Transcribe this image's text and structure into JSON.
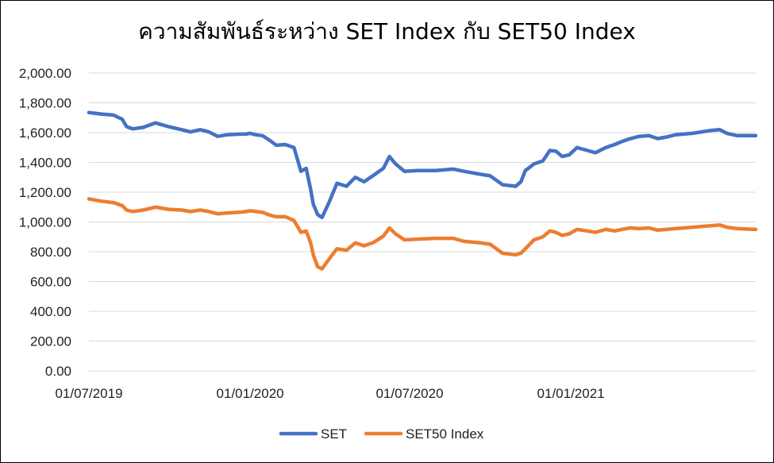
{
  "chart_data": {
    "type": "line",
    "title": "ความสัมพันธ์ระหว่าง SET Index กับ SET50 Index",
    "xlabel": "",
    "ylabel": "",
    "ylim": [
      0,
      2000
    ],
    "y_ticks": [
      "0.00",
      "200.00",
      "400.00",
      "600.00",
      "800.00",
      "1,000.00",
      "1,200.00",
      "1,400.00",
      "1,600.00",
      "1,800.00",
      "2,000.00"
    ],
    "x_ticks": [
      "01/07/2019",
      "01/01/2020",
      "01/07/2020",
      "01/01/2021"
    ],
    "x_tick_dates": [
      "2019-07-01",
      "2020-01-01",
      "2020-07-01",
      "2021-01-01"
    ],
    "xlim": [
      "2019-07-01",
      "2021-07-31"
    ],
    "grid": "horizontal",
    "legend": "bottom",
    "series": [
      {
        "name": "SET",
        "color": "#4472C4",
        "points": [
          [
            "2019-07-01",
            1735
          ],
          [
            "2019-07-15",
            1725
          ],
          [
            "2019-07-29",
            1718
          ],
          [
            "2019-08-08",
            1690
          ],
          [
            "2019-08-13",
            1640
          ],
          [
            "2019-08-20",
            1625
          ],
          [
            "2019-09-01",
            1635
          ],
          [
            "2019-09-15",
            1665
          ],
          [
            "2019-09-30",
            1640
          ],
          [
            "2019-10-15",
            1620
          ],
          [
            "2019-10-25",
            1605
          ],
          [
            "2019-11-05",
            1620
          ],
          [
            "2019-11-15",
            1605
          ],
          [
            "2019-11-25",
            1575
          ],
          [
            "2019-12-05",
            1585
          ],
          [
            "2019-12-20",
            1590
          ],
          [
            "2019-12-27",
            1590
          ],
          [
            "2020-01-01",
            1595
          ],
          [
            "2020-01-08",
            1585
          ],
          [
            "2020-01-15",
            1580
          ],
          [
            "2020-01-24",
            1545
          ],
          [
            "2020-01-31",
            1515
          ],
          [
            "2020-02-10",
            1520
          ],
          [
            "2020-02-20",
            1500
          ],
          [
            "2020-02-28",
            1340
          ],
          [
            "2020-03-05",
            1360
          ],
          [
            "2020-03-10",
            1220
          ],
          [
            "2020-03-13",
            1120
          ],
          [
            "2020-03-18",
            1050
          ],
          [
            "2020-03-23",
            1030
          ],
          [
            "2020-03-31",
            1130
          ],
          [
            "2020-04-09",
            1260
          ],
          [
            "2020-04-20",
            1240
          ],
          [
            "2020-04-30",
            1300
          ],
          [
            "2020-05-10",
            1270
          ],
          [
            "2020-05-20",
            1310
          ],
          [
            "2020-06-01",
            1360
          ],
          [
            "2020-06-08",
            1440
          ],
          [
            "2020-06-15",
            1390
          ],
          [
            "2020-06-25",
            1340
          ],
          [
            "2020-07-10",
            1345
          ],
          [
            "2020-07-31",
            1345
          ],
          [
            "2020-08-20",
            1355
          ],
          [
            "2020-09-01",
            1340
          ],
          [
            "2020-09-20",
            1320
          ],
          [
            "2020-10-01",
            1310
          ],
          [
            "2020-10-15",
            1250
          ],
          [
            "2020-10-30",
            1240
          ],
          [
            "2020-11-05",
            1270
          ],
          [
            "2020-11-10",
            1345
          ],
          [
            "2020-11-20",
            1390
          ],
          [
            "2020-11-30",
            1410
          ],
          [
            "2020-12-08",
            1480
          ],
          [
            "2020-12-15",
            1475
          ],
          [
            "2020-12-22",
            1440
          ],
          [
            "2020-12-30",
            1450
          ],
          [
            "2021-01-08",
            1500
          ],
          [
            "2021-01-20",
            1480
          ],
          [
            "2021-01-29",
            1465
          ],
          [
            "2021-02-10",
            1500
          ],
          [
            "2021-02-20",
            1520
          ],
          [
            "2021-02-28",
            1540
          ],
          [
            "2021-03-10",
            1560
          ],
          [
            "2021-03-20",
            1575
          ],
          [
            "2021-03-31",
            1580
          ],
          [
            "2021-04-10",
            1560
          ],
          [
            "2021-04-20",
            1570
          ],
          [
            "2021-04-30",
            1585
          ],
          [
            "2021-05-20",
            1595
          ],
          [
            "2021-06-10",
            1615
          ],
          [
            "2021-06-20",
            1620
          ],
          [
            "2021-06-28",
            1595
          ],
          [
            "2021-07-10",
            1580
          ],
          [
            "2021-07-31",
            1580
          ]
        ]
      },
      {
        "name": "SET50 Index",
        "color": "#ED7D31",
        "points": [
          [
            "2019-07-01",
            1155
          ],
          [
            "2019-07-15",
            1140
          ],
          [
            "2019-07-29",
            1130
          ],
          [
            "2019-08-08",
            1110
          ],
          [
            "2019-08-13",
            1080
          ],
          [
            "2019-08-20",
            1070
          ],
          [
            "2019-09-01",
            1080
          ],
          [
            "2019-09-15",
            1100
          ],
          [
            "2019-09-30",
            1085
          ],
          [
            "2019-10-15",
            1080
          ],
          [
            "2019-10-25",
            1070
          ],
          [
            "2019-11-05",
            1080
          ],
          [
            "2019-11-15",
            1070
          ],
          [
            "2019-11-25",
            1055
          ],
          [
            "2019-12-05",
            1060
          ],
          [
            "2019-12-20",
            1065
          ],
          [
            "2019-12-27",
            1070
          ],
          [
            "2020-01-01",
            1075
          ],
          [
            "2020-01-08",
            1070
          ],
          [
            "2020-01-15",
            1065
          ],
          [
            "2020-01-24",
            1045
          ],
          [
            "2020-01-31",
            1035
          ],
          [
            "2020-02-10",
            1035
          ],
          [
            "2020-02-20",
            1010
          ],
          [
            "2020-02-28",
            930
          ],
          [
            "2020-03-05",
            940
          ],
          [
            "2020-03-10",
            860
          ],
          [
            "2020-03-13",
            780
          ],
          [
            "2020-03-18",
            700
          ],
          [
            "2020-03-23",
            685
          ],
          [
            "2020-03-31",
            750
          ],
          [
            "2020-04-09",
            820
          ],
          [
            "2020-04-20",
            810
          ],
          [
            "2020-04-30",
            860
          ],
          [
            "2020-05-10",
            840
          ],
          [
            "2020-05-20",
            860
          ],
          [
            "2020-06-01",
            905
          ],
          [
            "2020-06-08",
            960
          ],
          [
            "2020-06-15",
            920
          ],
          [
            "2020-06-25",
            880
          ],
          [
            "2020-07-10",
            885
          ],
          [
            "2020-07-31",
            890
          ],
          [
            "2020-08-20",
            890
          ],
          [
            "2020-09-01",
            870
          ],
          [
            "2020-09-20",
            860
          ],
          [
            "2020-10-01",
            850
          ],
          [
            "2020-10-15",
            790
          ],
          [
            "2020-10-30",
            780
          ],
          [
            "2020-11-05",
            790
          ],
          [
            "2020-11-10",
            820
          ],
          [
            "2020-11-20",
            880
          ],
          [
            "2020-11-30",
            900
          ],
          [
            "2020-12-08",
            940
          ],
          [
            "2020-12-15",
            930
          ],
          [
            "2020-12-22",
            910
          ],
          [
            "2020-12-30",
            920
          ],
          [
            "2021-01-08",
            950
          ],
          [
            "2021-01-20",
            940
          ],
          [
            "2021-01-29",
            930
          ],
          [
            "2021-02-10",
            950
          ],
          [
            "2021-02-20",
            940
          ],
          [
            "2021-02-28",
            950
          ],
          [
            "2021-03-10",
            960
          ],
          [
            "2021-03-20",
            955
          ],
          [
            "2021-03-31",
            960
          ],
          [
            "2021-04-10",
            945
          ],
          [
            "2021-04-20",
            950
          ],
          [
            "2021-04-30",
            955
          ],
          [
            "2021-05-20",
            965
          ],
          [
            "2021-06-10",
            975
          ],
          [
            "2021-06-20",
            980
          ],
          [
            "2021-06-28",
            965
          ],
          [
            "2021-07-10",
            955
          ],
          [
            "2021-07-31",
            950
          ]
        ]
      }
    ]
  }
}
